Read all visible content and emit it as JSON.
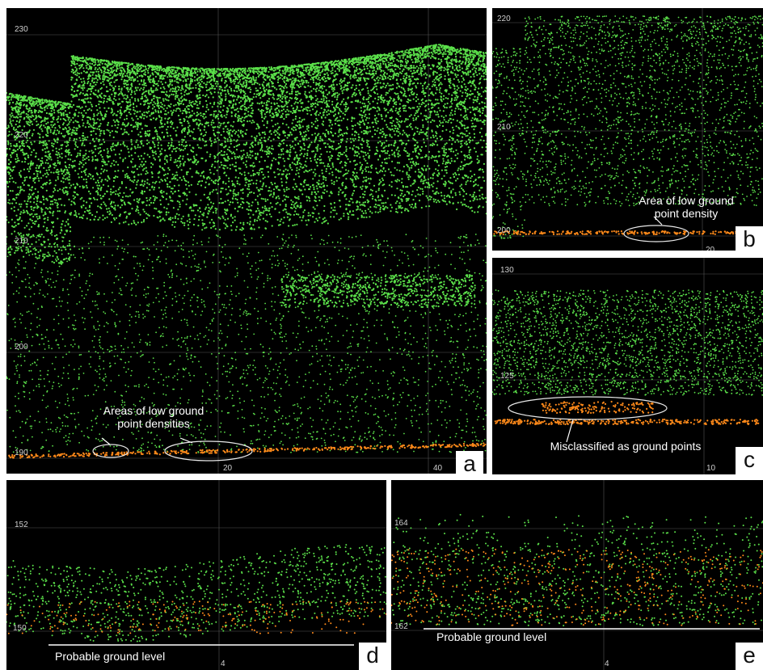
{
  "figure": {
    "panels": [
      {
        "id": "a",
        "letter": "a",
        "y_ticks": [
          "230",
          "220",
          "210",
          "200",
          "190"
        ],
        "x_ticks": [
          "20",
          "40"
        ],
        "annotation": "Areas of low ground\npoint densities",
        "canopy_color": "#5be04a",
        "ground_color": "#ff8a1a"
      },
      {
        "id": "b",
        "letter": "b",
        "y_ticks": [
          "220",
          "210",
          "200"
        ],
        "x_ticks": [
          "20"
        ],
        "annotation": "Area of low ground\npoint density",
        "canopy_color": "#5be04a",
        "ground_color": "#ff8a1a"
      },
      {
        "id": "c",
        "letter": "c",
        "y_ticks": [
          "130",
          "125"
        ],
        "x_ticks": [
          "10"
        ],
        "annotation": "Misclassified as ground points",
        "canopy_color": "#5be04a",
        "ground_color": "#ff8a1a"
      },
      {
        "id": "d",
        "letter": "d",
        "y_ticks": [
          "152",
          "150"
        ],
        "x_ticks": [
          "4"
        ],
        "annotation": "Probable ground level",
        "canopy_color": "#5be04a",
        "ground_color": "#ff8a1a"
      },
      {
        "id": "e",
        "letter": "e",
        "y_ticks": [
          "164",
          "162"
        ],
        "x_ticks": [
          "4"
        ],
        "annotation": "Probable ground level",
        "canopy_color": "#5be04a",
        "ground_color": "#ff8a1a"
      }
    ]
  }
}
